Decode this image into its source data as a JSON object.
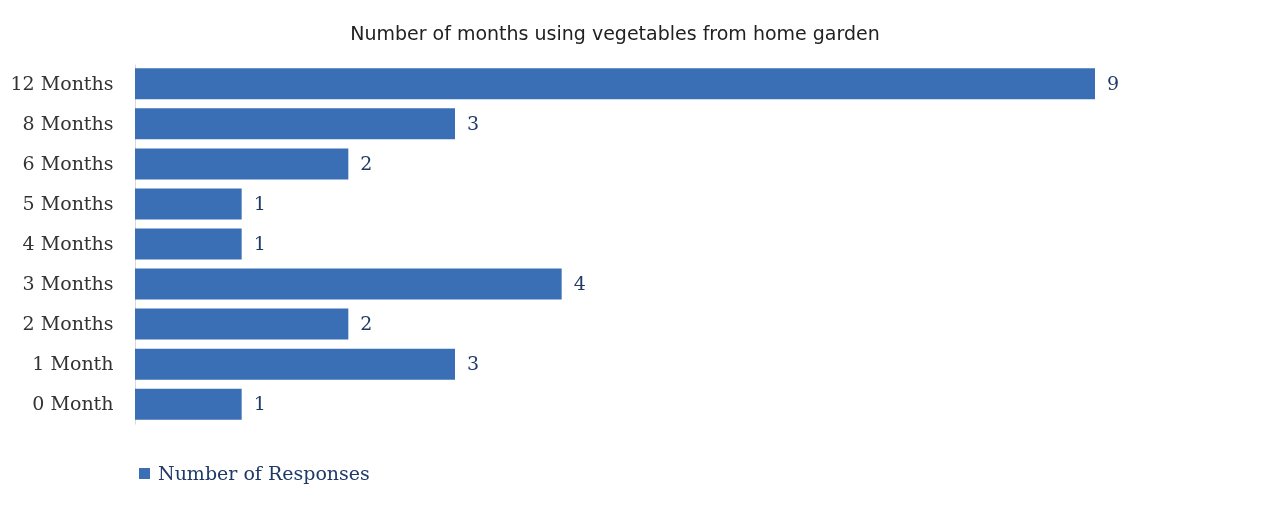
{
  "chart_data": {
    "type": "bar",
    "orientation": "horizontal",
    "title": "Number of months using vegetables from home garden",
    "categories": [
      "12 Months",
      "8 Months",
      "6 Months",
      "5 Months",
      "4 Months",
      "3 Months",
      "2 Months",
      "1 Month",
      "0 Month"
    ],
    "series": [
      {
        "name": "Number of Responses",
        "color": "#3a6fb5",
        "values": [
          9,
          3,
          2,
          1,
          1,
          4,
          2,
          3,
          1
        ]
      }
    ],
    "data_labels": true,
    "legend": "bottom",
    "tick_labels": "y"
  }
}
